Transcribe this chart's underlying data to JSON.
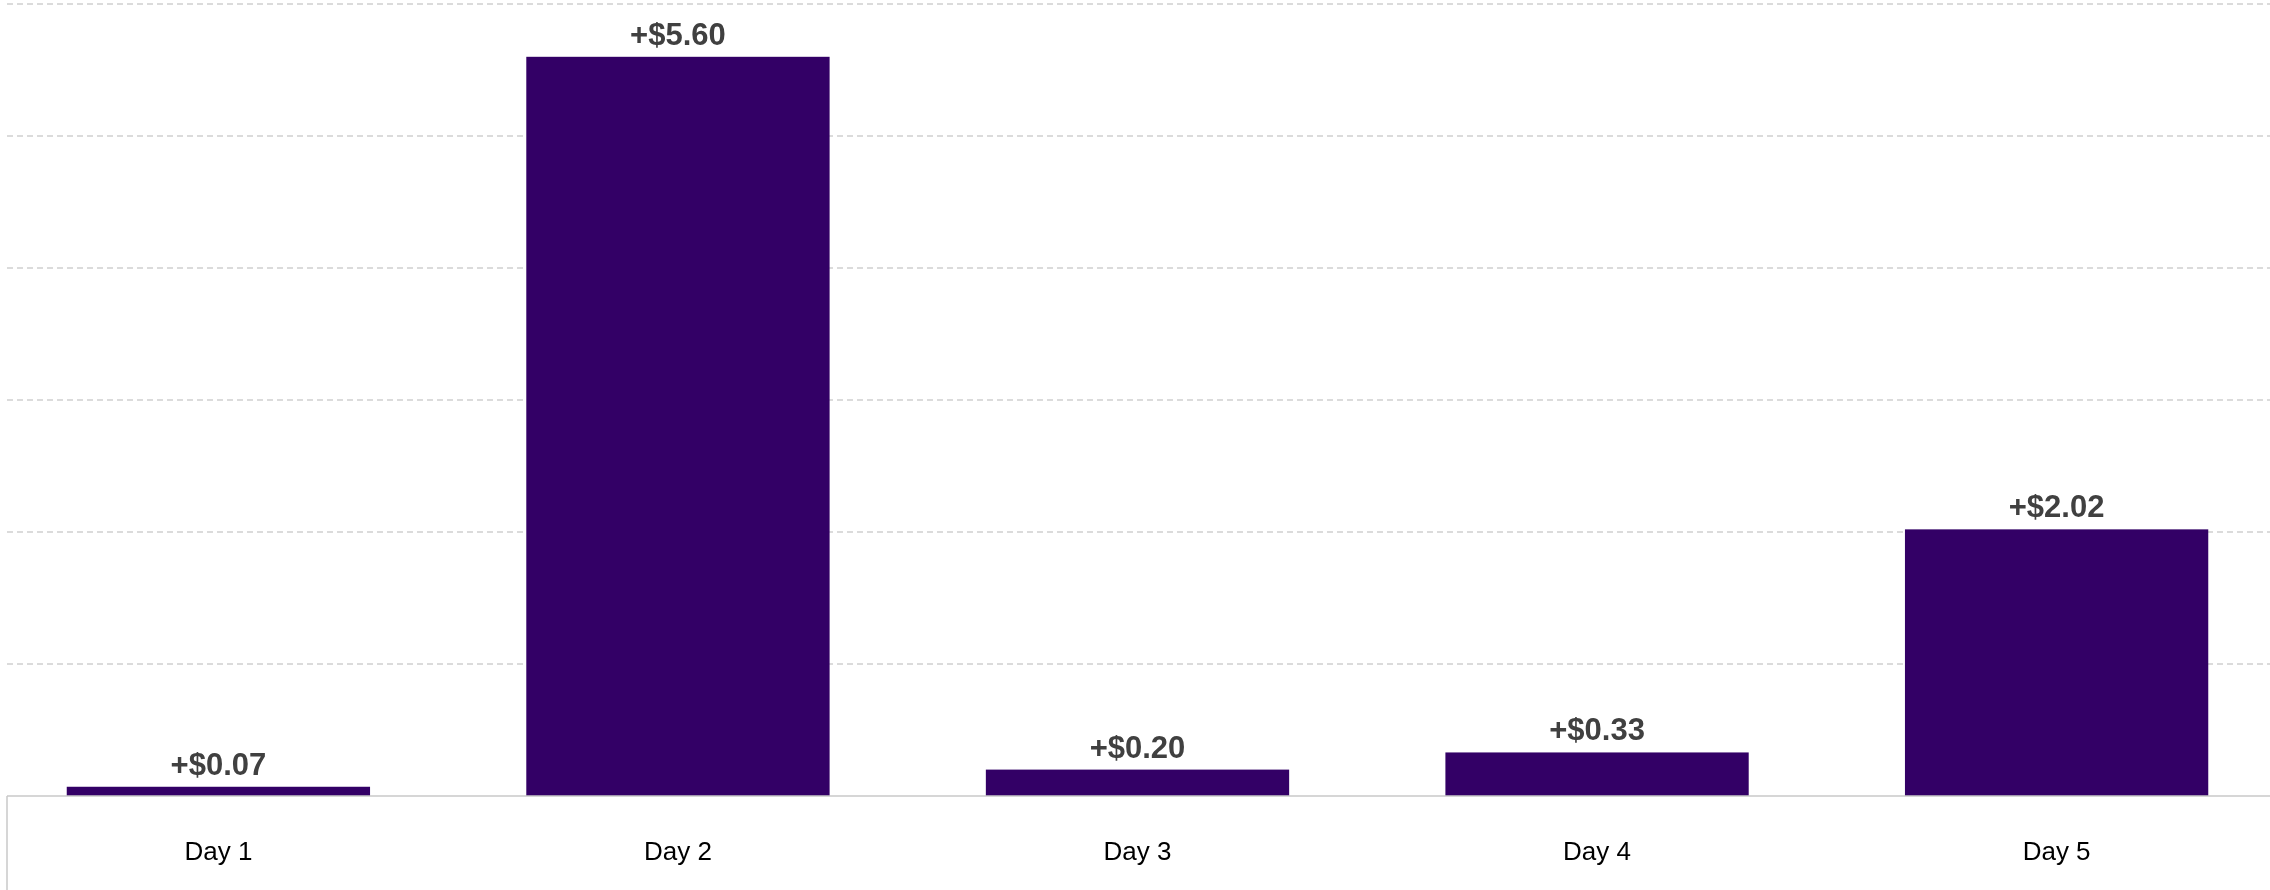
{
  "chart_data": {
    "type": "bar",
    "categories": [
      "Day 1",
      "Day 2",
      "Day 3",
      "Day 4",
      "Day 5"
    ],
    "values": [
      0.07,
      5.6,
      0.2,
      0.33,
      2.02
    ],
    "color": "#330066",
    "value_labels": [
      "+$0.07",
      "+$5.60",
      "+$0.20",
      "+$0.33",
      "+$2.02"
    ],
    "ylim": [
      0,
      6
    ],
    "yticks": [
      {
        "value": 0,
        "label": null
      },
      {
        "value": 1,
        "label": null
      },
      {
        "value": 2,
        "label": null
      },
      {
        "value": 3,
        "label": null
      },
      {
        "value": 4,
        "label": null
      },
      {
        "value": 5,
        "label": null
      },
      {
        "value": 6,
        "label": null
      }
    ],
    "grid": "y",
    "tick_labels": "x"
  }
}
